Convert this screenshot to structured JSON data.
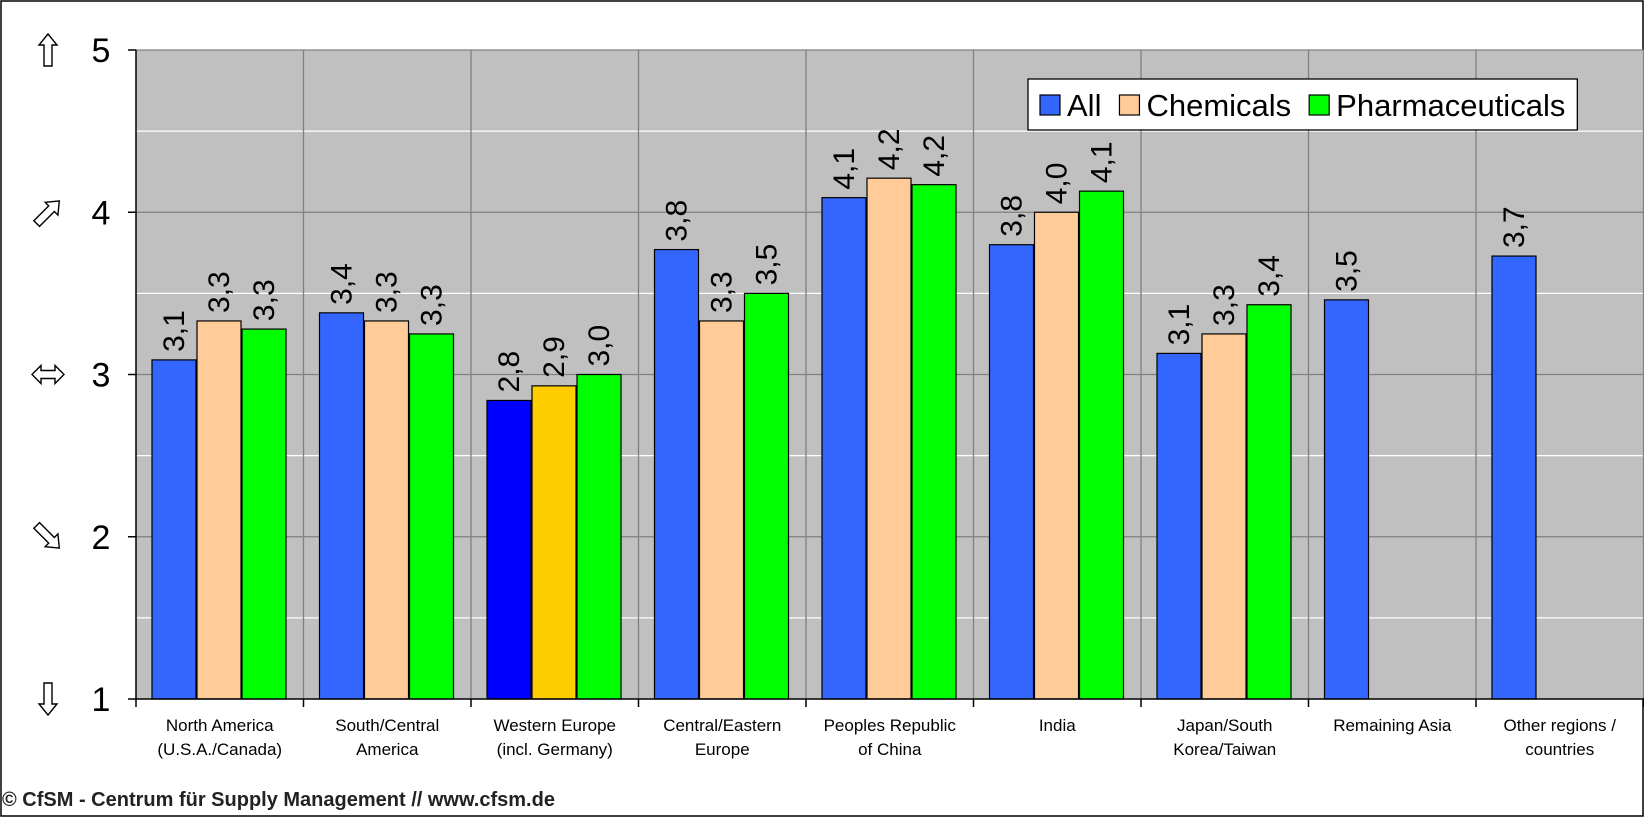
{
  "chart_data": {
    "type": "bar",
    "categories": [
      [
        "North America",
        "(U.S.A./Canada)"
      ],
      [
        "South/Central",
        "America"
      ],
      [
        "Western Europe",
        "(incl. Germany)"
      ],
      [
        "Central/Eastern",
        "Europe"
      ],
      [
        "Peoples Republic",
        "of China"
      ],
      [
        "India"
      ],
      [
        "Japan/South",
        "Korea/Taiwan"
      ],
      [
        "Remaining Asia"
      ],
      [
        "Other regions /",
        "countries"
      ]
    ],
    "series": [
      {
        "name": "All",
        "color": "#3366FF",
        "values": [
          3.09,
          3.38,
          2.84,
          3.77,
          4.09,
          3.8,
          3.13,
          3.46,
          3.73
        ],
        "labels": [
          "3,1",
          "3,4",
          "2,8",
          "3,8",
          "4,1",
          "3,8",
          "3,1",
          "3,5",
          "3,7"
        ]
      },
      {
        "name": "Chemicals",
        "color": "#FFCC99",
        "values": [
          3.33,
          3.33,
          2.93,
          3.33,
          4.21,
          4.0,
          3.25,
          null,
          null
        ],
        "labels": [
          "3,3",
          "3,3",
          "2,9",
          "3,3",
          "4,2",
          "4,0",
          "3,3",
          null,
          null
        ]
      },
      {
        "name": "Pharmaceuticals",
        "color": "#00FF00",
        "values": [
          3.28,
          3.25,
          3.0,
          3.5,
          4.17,
          4.13,
          3.43,
          null,
          null
        ],
        "labels": [
          "3,3",
          "3,3",
          "3,0",
          "3,5",
          "4,2",
          "4,1",
          "3,4",
          null,
          null
        ]
      }
    ],
    "highlight": {
      "category_index": 2,
      "colors": [
        "#0000FF",
        "#FFCC00",
        "#00FF00"
      ]
    },
    "yticks": [
      "1",
      "2",
      "3",
      "4",
      "5"
    ],
    "ylim": [
      1,
      5
    ],
    "axis_icons": [
      "arrow-down-icon",
      "arrow-down-right-icon",
      "arrow-left-right-icon",
      "arrow-up-right-icon",
      "arrow-up-icon"
    ],
    "legend_position": "top-right",
    "plot_background": "#C0C0C0",
    "grid": true
  },
  "footer": {
    "credit": "© CfSM - Centrum für Supply Management // www.cfsm.de"
  }
}
